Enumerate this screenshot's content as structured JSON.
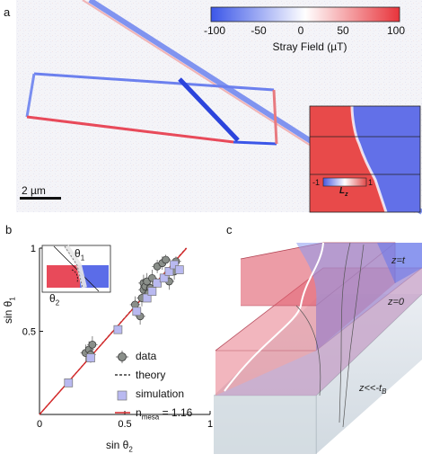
{
  "panel_a": {
    "letter": "a",
    "colorbar": {
      "ticks": [
        "-100",
        "-50",
        "0",
        "50",
        "100"
      ],
      "title": "Stray Field (µT)",
      "colors": {
        "low": "#3b56e8",
        "mid": "#ffffff",
        "high": "#e8343b"
      }
    },
    "scalebar_label": "2 µm",
    "inset": {
      "colorbar_ticks": [
        "-1",
        "1"
      ],
      "label": "L",
      "label_sub": "z"
    }
  },
  "panel_b": {
    "letter": "b",
    "inset_labels": {
      "theta1": "θ",
      "theta1_sub": "1",
      "theta2": "θ",
      "theta2_sub": "2"
    },
    "legend": {
      "data": "data",
      "theory": "theory",
      "simulation": "simulation",
      "fit": "n",
      "fit_sub": "mesa",
      "fit_value": "= 1.16"
    }
  },
  "panel_c": {
    "letter": "c",
    "labels": {
      "z_t": "z=t",
      "z_0": "z=0",
      "z_deep": "z<<-t",
      "z_deep_sub": "B"
    }
  },
  "chart_data": {
    "type": "scatter",
    "title": "",
    "xlabel": "sin θ₂",
    "ylabel": "sin θ₁",
    "xlim": [
      0,
      1
    ],
    "ylim": [
      0,
      1
    ],
    "x_ticks": [
      "0",
      "0.5",
      "1"
    ],
    "y_ticks": [
      "0",
      "0.5",
      "1"
    ],
    "xlabel_text": "sin θ",
    "xlabel_sub": "2",
    "ylabel_text": "sin θ",
    "ylabel_sub": "1",
    "series": [
      {
        "name": "data",
        "marker": "circle",
        "color": "#8a8f8a",
        "points": [
          {
            "x": 0.27,
            "y": 0.37,
            "xerr": 0.03,
            "yerr": 0.05
          },
          {
            "x": 0.29,
            "y": 0.39,
            "xerr": 0.03,
            "yerr": 0.05
          },
          {
            "x": 0.3,
            "y": 0.36,
            "xerr": 0.03,
            "yerr": 0.05
          },
          {
            "x": 0.31,
            "y": 0.42,
            "xerr": 0.03,
            "yerr": 0.05
          },
          {
            "x": 0.56,
            "y": 0.66,
            "xerr": 0.03,
            "yerr": 0.05
          },
          {
            "x": 0.59,
            "y": 0.59,
            "xerr": 0.03,
            "yerr": 0.05
          },
          {
            "x": 0.6,
            "y": 0.7,
            "xerr": 0.03,
            "yerr": 0.05
          },
          {
            "x": 0.61,
            "y": 0.75,
            "xerr": 0.03,
            "yerr": 0.05
          },
          {
            "x": 0.61,
            "y": 0.79,
            "xerr": 0.03,
            "yerr": 0.05
          },
          {
            "x": 0.62,
            "y": 0.77,
            "xerr": 0.03,
            "yerr": 0.05
          },
          {
            "x": 0.63,
            "y": 0.8,
            "xerr": 0.03,
            "yerr": 0.05
          },
          {
            "x": 0.64,
            "y": 0.73,
            "xerr": 0.03,
            "yerr": 0.05
          },
          {
            "x": 0.65,
            "y": 0.76,
            "xerr": 0.03,
            "yerr": 0.05
          },
          {
            "x": 0.66,
            "y": 0.82,
            "xerr": 0.03,
            "yerr": 0.05
          },
          {
            "x": 0.69,
            "y": 0.89,
            "xerr": 0.03,
            "yerr": 0.04
          },
          {
            "x": 0.72,
            "y": 0.91,
            "xerr": 0.03,
            "yerr": 0.04
          },
          {
            "x": 0.74,
            "y": 0.93,
            "xerr": 0.03,
            "yerr": 0.03
          },
          {
            "x": 0.76,
            "y": 0.8,
            "xerr": 0.03,
            "yerr": 0.05
          },
          {
            "x": 0.79,
            "y": 0.86,
            "xerr": 0.03,
            "yerr": 0.05
          },
          {
            "x": 0.8,
            "y": 0.92,
            "xerr": 0.03,
            "yerr": 0.03
          }
        ]
      },
      {
        "name": "simulation",
        "marker": "square",
        "color": "#b9b9f0",
        "points": [
          {
            "x": 0.17,
            "y": 0.19
          },
          {
            "x": 0.3,
            "y": 0.34
          },
          {
            "x": 0.46,
            "y": 0.51
          },
          {
            "x": 0.57,
            "y": 0.62
          },
          {
            "x": 0.63,
            "y": 0.7
          },
          {
            "x": 0.66,
            "y": 0.74
          },
          {
            "x": 0.69,
            "y": 0.79
          },
          {
            "x": 0.73,
            "y": 0.82
          },
          {
            "x": 0.76,
            "y": 0.86
          },
          {
            "x": 0.79,
            "y": 0.9
          },
          {
            "x": 0.82,
            "y": 0.87
          }
        ]
      },
      {
        "name": "theory",
        "style": "dashed",
        "color": "#111111",
        "line": [
          [
            0,
            0
          ],
          [
            0.86,
            1.0
          ]
        ]
      },
      {
        "name": "n_mesa = 1.16",
        "style": "solid",
        "color": "#d62728",
        "line": [
          [
            0,
            0
          ],
          [
            0.862,
            1.0
          ]
        ]
      }
    ],
    "grid": false,
    "legend_position": "bottom-right"
  }
}
